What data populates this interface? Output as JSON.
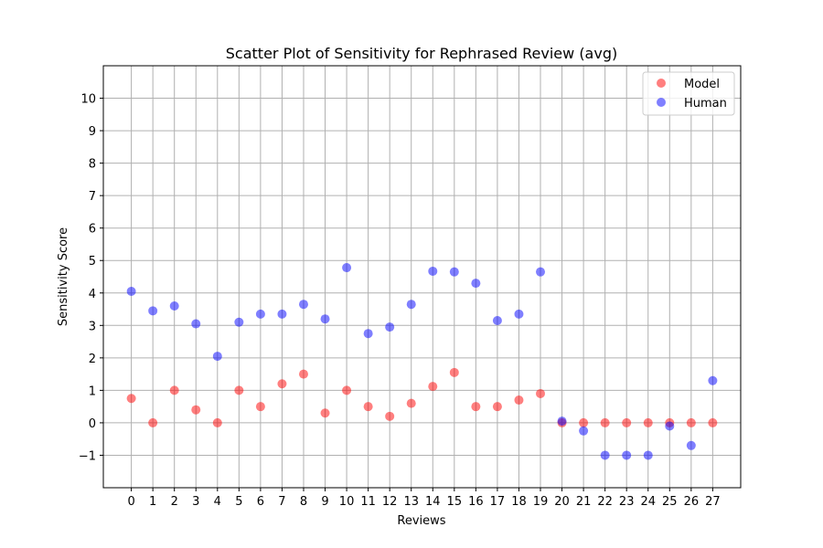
{
  "chart_data": {
    "type": "scatter",
    "title": "Scatter Plot of Sensitivity for Rephrased Review (avg)",
    "xlabel": "Reviews",
    "ylabel": "Sensitivity Score",
    "xlim": [
      -1.3,
      28.3
    ],
    "ylim": [
      -2,
      11
    ],
    "x_ticks": [
      0,
      1,
      2,
      3,
      4,
      5,
      6,
      7,
      8,
      9,
      10,
      11,
      12,
      13,
      14,
      15,
      16,
      17,
      18,
      19,
      20,
      21,
      22,
      23,
      24,
      25,
      26,
      27
    ],
    "y_ticks": [
      -1,
      0,
      1,
      2,
      3,
      4,
      5,
      6,
      7,
      8,
      9,
      10
    ],
    "y_tick_labels": [
      "−1",
      "0",
      "1",
      "2",
      "3",
      "4",
      "5",
      "6",
      "7",
      "8",
      "9",
      "10"
    ],
    "grid": true,
    "legend_position": "top-right",
    "x": [
      0,
      1,
      2,
      3,
      4,
      5,
      6,
      7,
      8,
      9,
      10,
      11,
      12,
      13,
      14,
      15,
      16,
      17,
      18,
      19,
      20,
      21,
      22,
      23,
      24,
      25,
      26,
      27
    ],
    "series": [
      {
        "name": "Model",
        "color": "#ff0000",
        "values": [
          0.75,
          0,
          1,
          0.4,
          0,
          1,
          0.5,
          1.2,
          1.5,
          0.3,
          1,
          0.5,
          0.2,
          0.6,
          1.12,
          1.55,
          0.5,
          0.5,
          0.7,
          0.9,
          0,
          0,
          0,
          0,
          0,
          0,
          0,
          0
        ]
      },
      {
        "name": "Human",
        "color": "#0000ff",
        "values": [
          4.05,
          3.45,
          3.6,
          3.05,
          2.05,
          3.1,
          3.35,
          3.35,
          3.65,
          3.2,
          4.78,
          2.75,
          2.95,
          3.65,
          4.67,
          4.65,
          4.3,
          3.15,
          3.35,
          4.65,
          0.05,
          -0.25,
          -1,
          -1,
          -1,
          -0.1,
          -0.7,
          1.3
        ]
      }
    ]
  }
}
